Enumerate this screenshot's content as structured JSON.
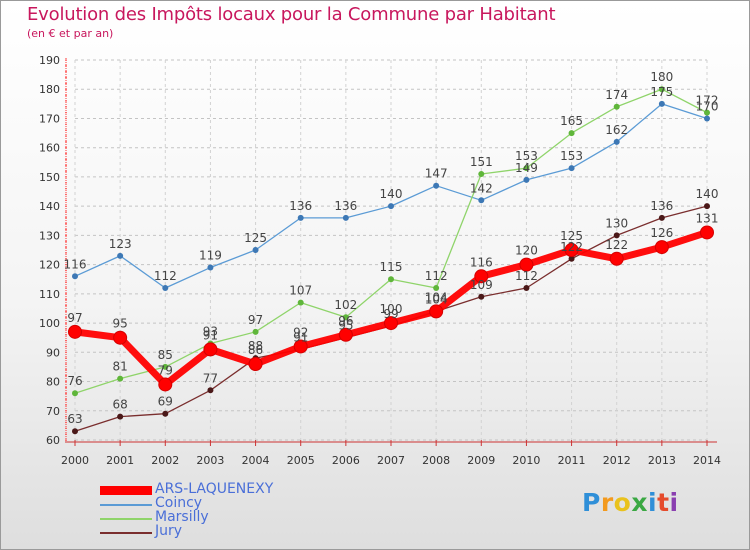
{
  "chart_data": {
    "type": "line",
    "title": "Evolution des Impôts locaux pour la Commune par Habitant",
    "subtitle": "(en € et par an)",
    "xlabel": "",
    "ylabel": "",
    "ylim": [
      60,
      190
    ],
    "yticks": [
      60,
      70,
      80,
      90,
      100,
      110,
      120,
      130,
      140,
      150,
      160,
      170,
      180,
      190
    ],
    "grid": true,
    "legend_position": "bottom-left",
    "categories": [
      "2000",
      "2001",
      "2002",
      "2003",
      "2004",
      "2005",
      "2006",
      "2007",
      "2008",
      "2009",
      "2010",
      "2011",
      "2012",
      "2013",
      "2014"
    ],
    "series": [
      {
        "name": "Coincy",
        "color": "#5b9bd5",
        "values": [
          116,
          123,
          112,
          119,
          125,
          136,
          136,
          140,
          147,
          142,
          149,
          153,
          162,
          175,
          170
        ]
      },
      {
        "name": "Marsilly",
        "color": "#8fd46a",
        "values": [
          76,
          81,
          85,
          93,
          97,
          107,
          102,
          115,
          112,
          151,
          153,
          165,
          174,
          180,
          172
        ]
      },
      {
        "name": "Jury",
        "color": "#7a2e2e",
        "values": [
          63,
          68,
          69,
          77,
          88,
          91,
          95,
          99,
          104,
          109,
          112,
          122,
          130,
          136,
          140
        ]
      },
      {
        "name": "ARS-LAQUENEXY",
        "color": "#ff0000",
        "values": [
          97,
          95,
          79,
          91,
          86,
          92,
          96,
          100,
          104,
          116,
          120,
          125,
          122,
          126,
          131
        ]
      }
    ]
  },
  "watermark": "Proxiti"
}
